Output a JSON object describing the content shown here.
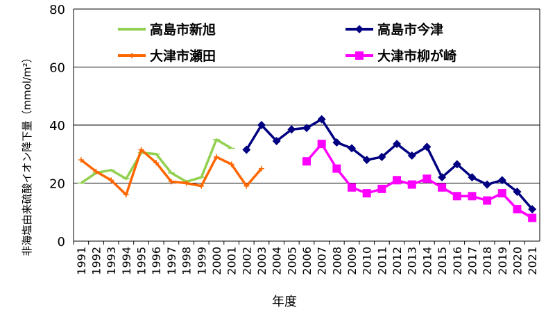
{
  "chart_data": {
    "type": "line",
    "xlabel": "年度",
    "ylabel": "非海塩由来硫酸イオン降下量（mmol/m²）",
    "ylim": [
      0,
      80
    ],
    "yticks": [
      0,
      20,
      40,
      60,
      80
    ],
    "grid": true,
    "legend_position": "top",
    "categories": [
      "1991",
      "1992",
      "1993",
      "1994",
      "1995",
      "1996",
      "1997",
      "1998",
      "1999",
      "2000",
      "2001",
      "2002",
      "2003",
      "2004",
      "2005",
      "2006",
      "2007",
      "2008",
      "2009",
      "2010",
      "2011",
      "2012",
      "2013",
      "2014",
      "2015",
      "2016",
      "2017",
      "2018",
      "2019",
      "2020",
      "2021"
    ],
    "series": [
      {
        "name": "高島市新旭",
        "color": "#92d050",
        "marker": "dash",
        "x": [
          "1991",
          "1992",
          "1993",
          "1994",
          "1995",
          "1996",
          "1997",
          "1998",
          "1999",
          "2000",
          "2001"
        ],
        "values": [
          20,
          23.5,
          24.5,
          21.5,
          30.5,
          30,
          23.5,
          20.5,
          22,
          35,
          32
        ]
      },
      {
        "name": "大津市瀬田",
        "color": "#ff6600",
        "marker": "plus",
        "x": [
          "1991",
          "1992",
          "1993",
          "1994",
          "1995",
          "1996",
          "1997",
          "1998",
          "1999",
          "2000",
          "2001",
          "2002",
          "2003"
        ],
        "values": [
          28,
          24,
          21,
          16,
          31.5,
          27,
          20.5,
          20,
          19,
          29,
          26.5,
          19,
          25
        ]
      },
      {
        "name": "高島市今津",
        "color": "#000080",
        "marker": "diamond",
        "x": [
          "2002",
          "2003",
          "2004",
          "2005",
          "2006",
          "2007",
          "2008",
          "2009",
          "2010",
          "2011",
          "2012",
          "2013",
          "2014",
          "2015",
          "2016",
          "2017",
          "2018",
          "2019",
          "2020",
          "2021"
        ],
        "values": [
          31.5,
          40,
          34.5,
          38.5,
          39,
          42,
          34,
          32,
          28,
          29,
          33.5,
          29.5,
          32.5,
          22,
          26.5,
          22,
          19.5,
          21,
          17,
          11
        ]
      },
      {
        "name": "大津市柳が崎",
        "color": "#ff00ff",
        "marker": "square",
        "x": [
          "2006",
          "2007",
          "2008",
          "2009",
          "2010",
          "2011",
          "2012",
          "2013",
          "2014",
          "2015",
          "2016",
          "2017",
          "2018",
          "2019",
          "2020",
          "2021"
        ],
        "values": [
          27.5,
          33.5,
          25,
          18.5,
          16.5,
          18,
          21,
          19.5,
          21.5,
          18.5,
          15.5,
          15.5,
          14,
          16.5,
          11,
          8
        ]
      }
    ]
  }
}
